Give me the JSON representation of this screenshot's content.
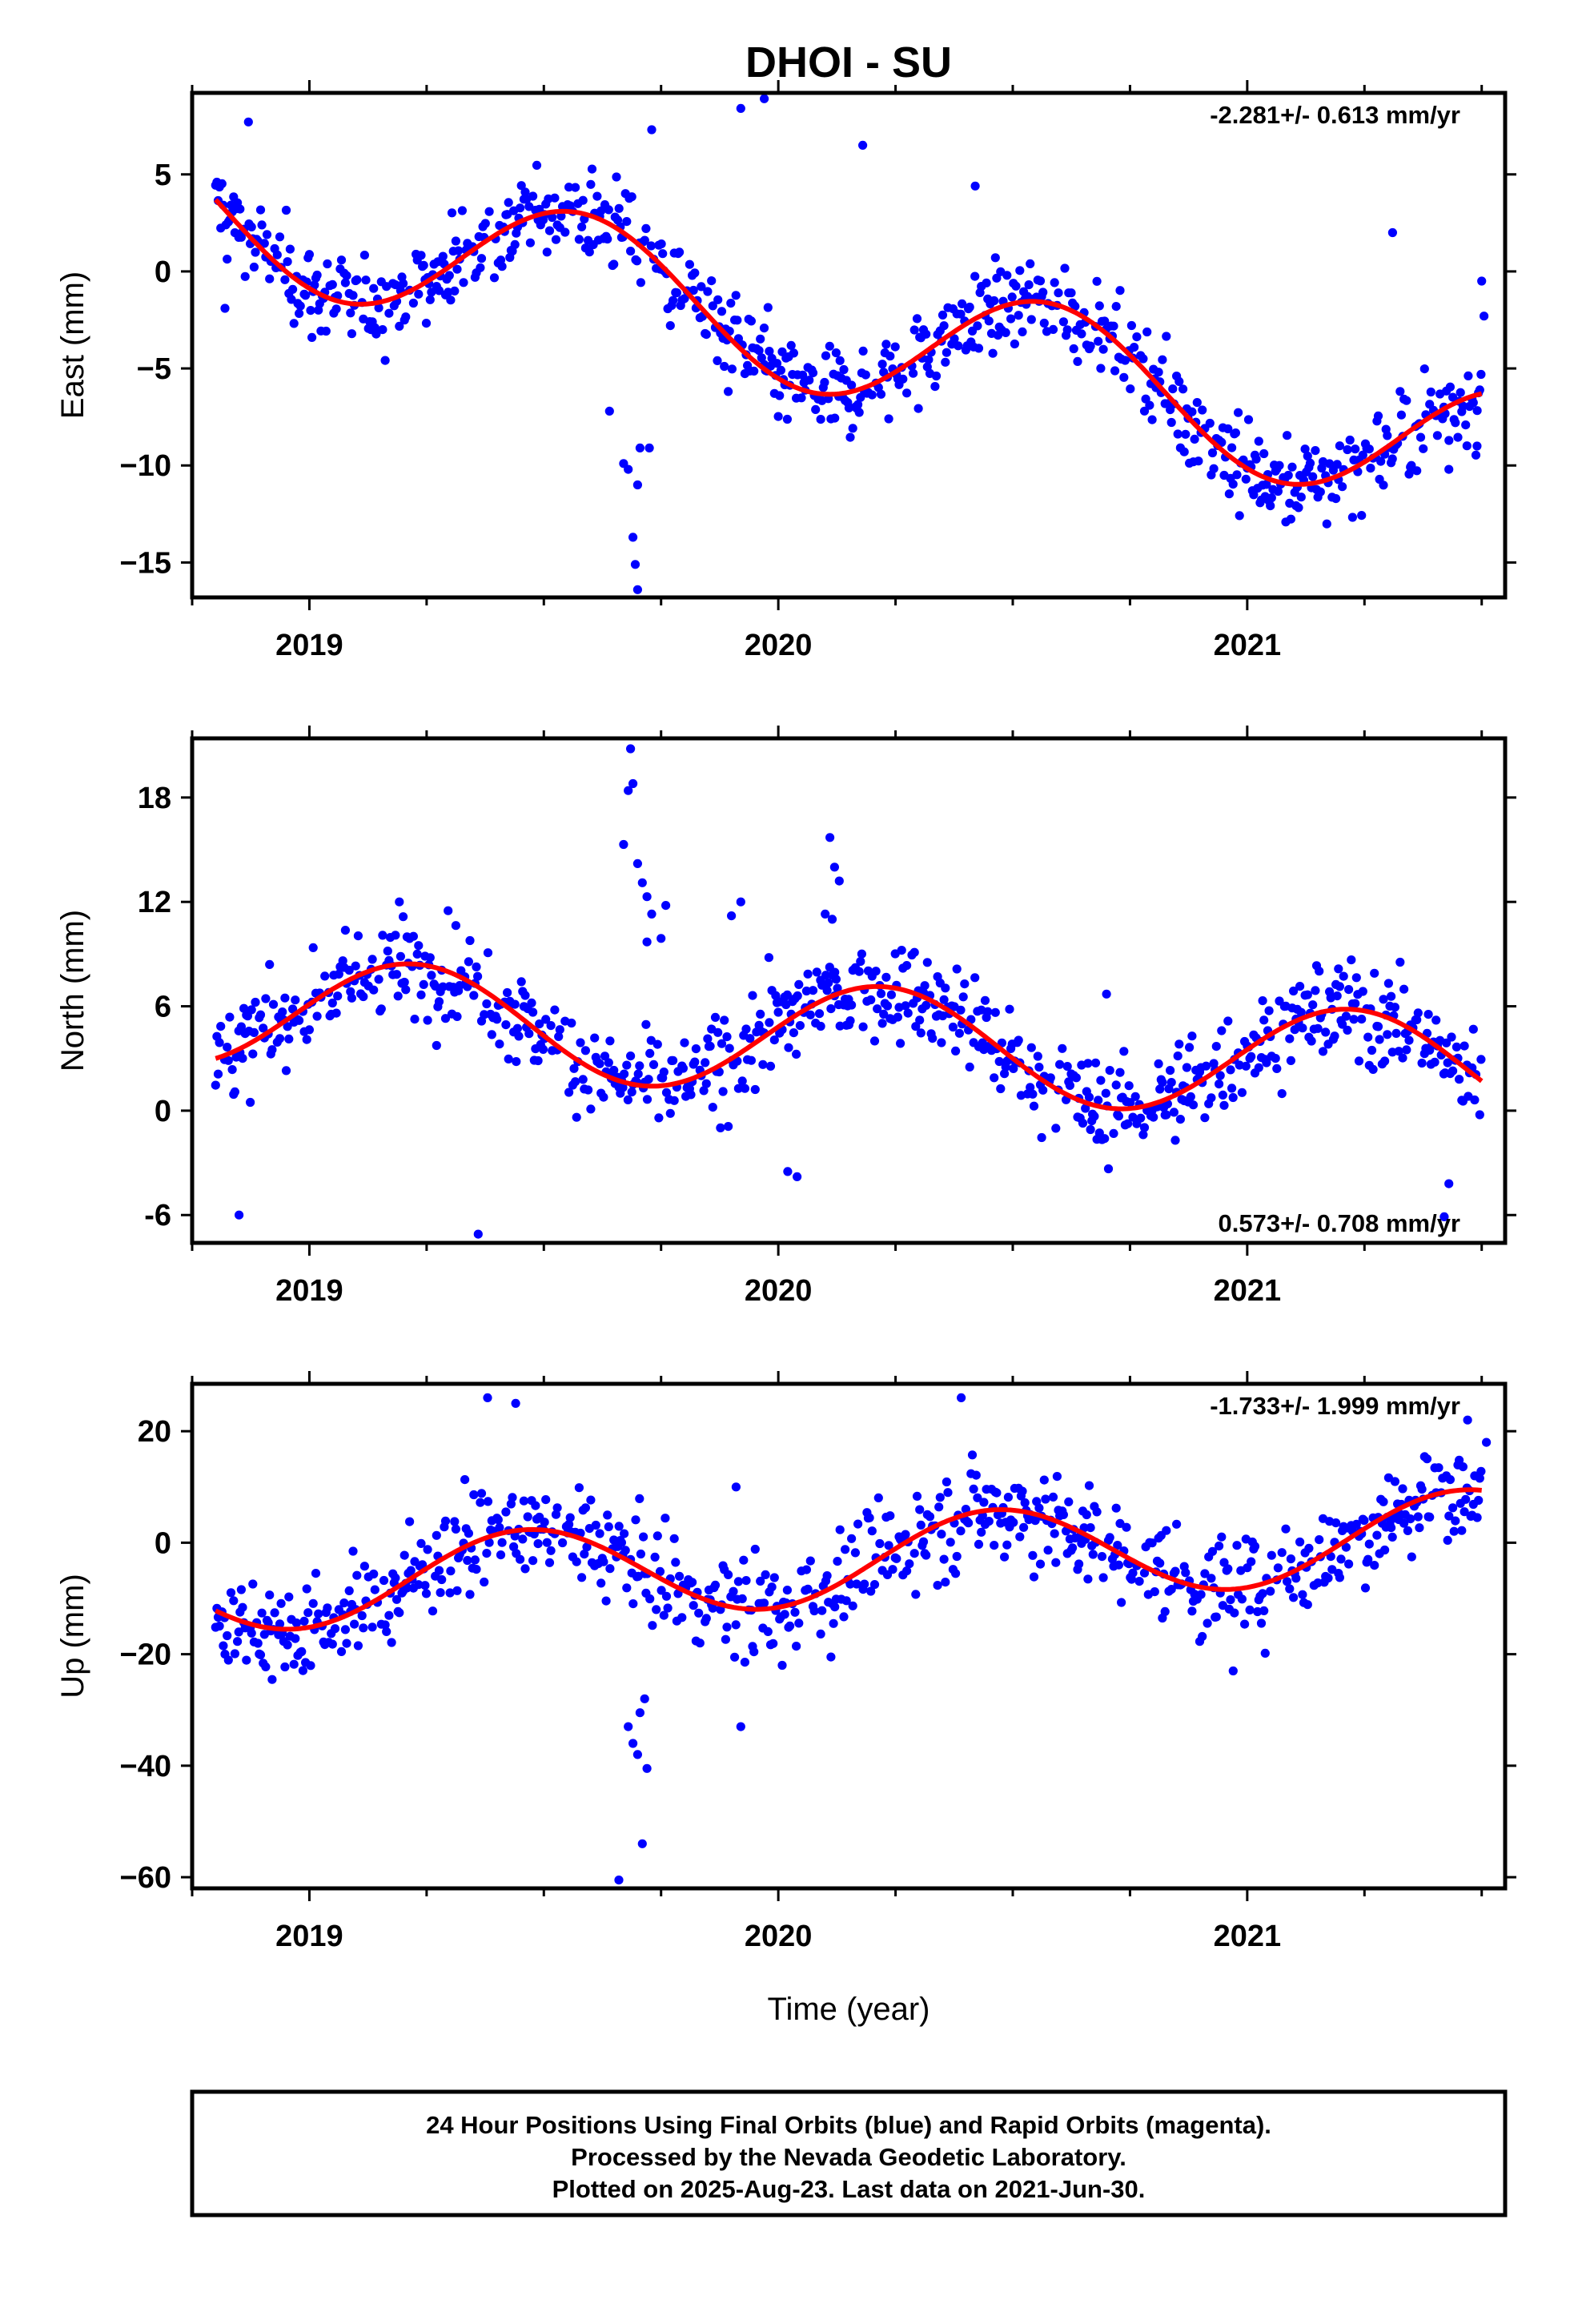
{
  "title": "DHOI - SU",
  "xlabel": "Time (year)",
  "colors": {
    "final_orbits": "#0000ff",
    "rapid_orbits": "#ff00ff",
    "model": "#ff0000",
    "axis": "#000000"
  },
  "footer": {
    "line1": "24 Hour Positions Using Final Orbits (blue) and Rapid Orbits (magenta).",
    "line2": "Processed by the Nevada Geodetic Laboratory.",
    "line3": "Plotted on 2025-Aug-23. Last data on 2021-Jun-30."
  },
  "chart_data": [
    {
      "type": "scatter",
      "ylabel": "East (mm)",
      "rate_label": "-2.281+/- 0.613 mm/yr",
      "rate_position": "top-right",
      "xlim": [
        2018.75,
        2021.55
      ],
      "ylim": [
        -16.8,
        9.2
      ],
      "xticks": [
        2019,
        2020,
        2021
      ],
      "xtick_labels": [
        "2019",
        "2020",
        "2021"
      ],
      "yticks": [
        -15,
        -10,
        -5,
        0,
        5
      ],
      "ytick_labels": [
        "−15",
        "−10",
        "−5",
        "0",
        "5"
      ],
      "grid": false,
      "model": {
        "amplitude": 3.35,
        "a": -3.09,
        "b": -1.59,
        "c": 0.46,
        "t0": 2018.8,
        "t1": 2021.5,
        "y0": 3.7,
        "y1": -6.3,
        "residual_sd": 1.15
      },
      "outliers": [
        {
          "x": 2019.67,
          "y": -9.9
        },
        {
          "x": 2019.68,
          "y": -10.2
        },
        {
          "x": 2019.69,
          "y": -13.7
        },
        {
          "x": 2019.695,
          "y": -15.1
        },
        {
          "x": 2019.7,
          "y": -16.4
        },
        {
          "x": 2019.7,
          "y": -11.0
        },
        {
          "x": 2019.705,
          "y": -9.1
        },
        {
          "x": 2019.725,
          "y": -9.1
        },
        {
          "x": 2019.64,
          "y": -7.2
        },
        {
          "x": 2019.73,
          "y": 7.3
        },
        {
          "x": 2019.92,
          "y": 8.4
        },
        {
          "x": 2019.97,
          "y": 8.9
        },
        {
          "x": 2020.18,
          "y": 6.5
        },
        {
          "x": 2020.42,
          "y": 4.4
        },
        {
          "x": 2021.31,
          "y": 2.0
        },
        {
          "x": 2021.43,
          "y": -10.2
        },
        {
          "x": 2021.35,
          "y": -10.0
        },
        {
          "x": 2021.49,
          "y": -9.0
        },
        {
          "x": 2021.5,
          "y": -0.5
        },
        {
          "x": 2021.505,
          "y": -2.3
        },
        {
          "x": 2019.97,
          "y": -4.8
        },
        {
          "x": 2019.87,
          "y": -4.6
        },
        {
          "x": 2018.82,
          "y": -1.9
        },
        {
          "x": 2018.87,
          "y": 7.7
        }
      ]
    },
    {
      "type": "scatter",
      "ylabel": "North (mm)",
      "rate_label": "0.573+/- 0.708 mm/yr",
      "rate_position": "bottom-right",
      "xlim": [
        2018.75,
        2021.55
      ],
      "ylim": [
        -7.6,
        21.4
      ],
      "xticks": [
        2019,
        2020,
        2021
      ],
      "xtick_labels": [
        "2019",
        "2020",
        "2021"
      ],
      "yticks": [
        -6,
        0,
        6,
        12,
        18
      ],
      "ytick_labels": [
        "-6",
        "0",
        "6",
        "12",
        "18"
      ],
      "grid": false,
      "model": {
        "amplitude": 3.57,
        "a": 0.58,
        "b": 3.13,
        "c": 2.55,
        "t0": 2018.8,
        "t1": 2021.5,
        "y0": 3.0,
        "y1": 1.7,
        "residual_sd": 1.4
      },
      "outliers": [
        {
          "x": 2019.67,
          "y": 15.3
        },
        {
          "x": 2019.68,
          "y": 18.4
        },
        {
          "x": 2019.69,
          "y": 18.8
        },
        {
          "x": 2019.685,
          "y": 20.8
        },
        {
          "x": 2019.7,
          "y": 14.2
        },
        {
          "x": 2019.71,
          "y": 13.1
        },
        {
          "x": 2019.72,
          "y": 12.3
        },
        {
          "x": 2019.73,
          "y": 11.3
        },
        {
          "x": 2019.75,
          "y": 9.9
        },
        {
          "x": 2019.72,
          "y": 9.7
        },
        {
          "x": 2019.76,
          "y": 11.8
        },
        {
          "x": 2019.9,
          "y": 11.2
        },
        {
          "x": 2019.92,
          "y": 12.0
        },
        {
          "x": 2020.11,
          "y": 15.7
        },
        {
          "x": 2020.12,
          "y": 14.0
        },
        {
          "x": 2020.13,
          "y": 13.2
        },
        {
          "x": 2020.1,
          "y": 11.3
        },
        {
          "x": 2020.115,
          "y": 11.0
        },
        {
          "x": 2020.12,
          "y": 6.6
        },
        {
          "x": 2020.09,
          "y": 7.5
        },
        {
          "x": 2020.15,
          "y": 6.4
        },
        {
          "x": 2020.02,
          "y": -3.5
        },
        {
          "x": 2020.04,
          "y": -3.8
        },
        {
          "x": 2019.98,
          "y": 8.8
        },
        {
          "x": 2021.42,
          "y": -6.1
        },
        {
          "x": 2021.43,
          "y": -4.2
        },
        {
          "x": 2019.36,
          "y": -7.1
        },
        {
          "x": 2018.85,
          "y": -6.0
        },
        {
          "x": 2020.7,
          "y": 6.7
        },
        {
          "x": 2020.67,
          "y": -0.2
        }
      ]
    },
    {
      "type": "scatter",
      "ylabel": "Up (mm)",
      "rate_label": "-1.733+/- 1.999 mm/yr",
      "rate_position": "top-right",
      "xlim": [
        2018.75,
        2021.55
      ],
      "ylim": [
        -62,
        28.5
      ],
      "xticks": [
        2019,
        2020,
        2021
      ],
      "xtick_labels": [
        "2019",
        "2020",
        "2021"
      ],
      "yticks": [
        -60,
        -40,
        -20,
        0,
        20
      ],
      "ytick_labels": [
        "−60",
        "−40",
        "−20",
        "0",
        "20"
      ],
      "grid": false,
      "model": {
        "amplitude": 13.8,
        "a": -7.82,
        "b": 1.82,
        "c": 2.24,
        "t0": 2018.8,
        "t1": 2021.5,
        "y0": -12.2,
        "y1": 9.4,
        "residual_sd": 4.6
      },
      "outliers": [
        {
          "x": 2019.66,
          "y": -60.5
        },
        {
          "x": 2019.71,
          "y": -54.0
        },
        {
          "x": 2019.72,
          "y": -40.5
        },
        {
          "x": 2019.7,
          "y": -38.0
        },
        {
          "x": 2019.69,
          "y": -36.0
        },
        {
          "x": 2019.68,
          "y": -33.0
        },
        {
          "x": 2019.705,
          "y": -30.5
        },
        {
          "x": 2019.715,
          "y": -28.0
        },
        {
          "x": 2019.92,
          "y": -33.0
        },
        {
          "x": 2019.91,
          "y": 10.0
        },
        {
          "x": 2019.38,
          "y": 26.0
        },
        {
          "x": 2019.44,
          "y": 25.0
        },
        {
          "x": 2020.39,
          "y": 26.0
        },
        {
          "x": 2021.47,
          "y": 22.0
        },
        {
          "x": 2021.51,
          "y": 18.0
        },
        {
          "x": 2020.97,
          "y": -23.0
        },
        {
          "x": 2019.3,
          "y": -9.0
        },
        {
          "x": 2018.82,
          "y": -20.0
        }
      ]
    }
  ]
}
